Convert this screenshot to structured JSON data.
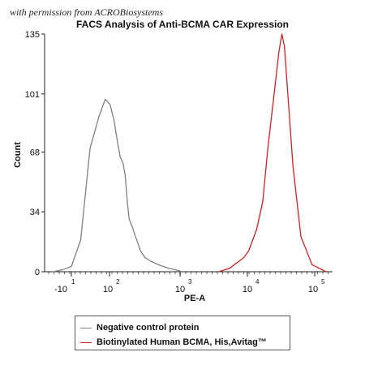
{
  "watermark": "with permission from ACROBiosystems",
  "chart_data": {
    "type": "line",
    "title": "FACS Analysis of Anti-BCMA CAR Expression",
    "xlabel": "PE-A",
    "ylabel": "Count",
    "x_scale": "biexponential",
    "xlim": [
      -20,
      200000
    ],
    "ylim": [
      0,
      135
    ],
    "y_ticks": [
      0,
      34,
      68,
      101,
      135
    ],
    "x_tick_labels": [
      {
        "base": "-10",
        "exp": "1"
      },
      {
        "base": "10",
        "exp": "2"
      },
      {
        "base": "10",
        "exp": "3"
      },
      {
        "base": "10",
        "exp": "4"
      },
      {
        "base": "10",
        "exp": "5"
      }
    ],
    "grid": false,
    "legend_position": "bottom",
    "series": [
      {
        "name": "Negative control protein",
        "color": "#808080",
        "x": [
          -10,
          -5,
          0,
          5,
          10,
          15,
          20,
          25,
          30,
          35,
          40,
          45,
          50,
          55,
          60,
          70,
          80,
          90,
          100,
          120,
          150,
          200,
          300,
          400,
          500
        ],
        "y": [
          0,
          1,
          3,
          18,
          70,
          88,
          98,
          95,
          86,
          74,
          65,
          62,
          55,
          40,
          30,
          25,
          20,
          16,
          12,
          8,
          6,
          4,
          2,
          1,
          0
        ]
      },
      {
        "name": "Biotinylated Human BCMA, His,Avitag™",
        "color": "#cc2222",
        "x": [
          2000,
          3000,
          5000,
          6000,
          8000,
          10000,
          12000,
          15000,
          18000,
          20000,
          22000,
          25000,
          30000,
          40000,
          60000,
          100000
        ],
        "y": [
          0,
          2,
          8,
          12,
          24,
          40,
          70,
          100,
          125,
          135,
          128,
          100,
          60,
          20,
          4,
          0
        ]
      }
    ]
  }
}
